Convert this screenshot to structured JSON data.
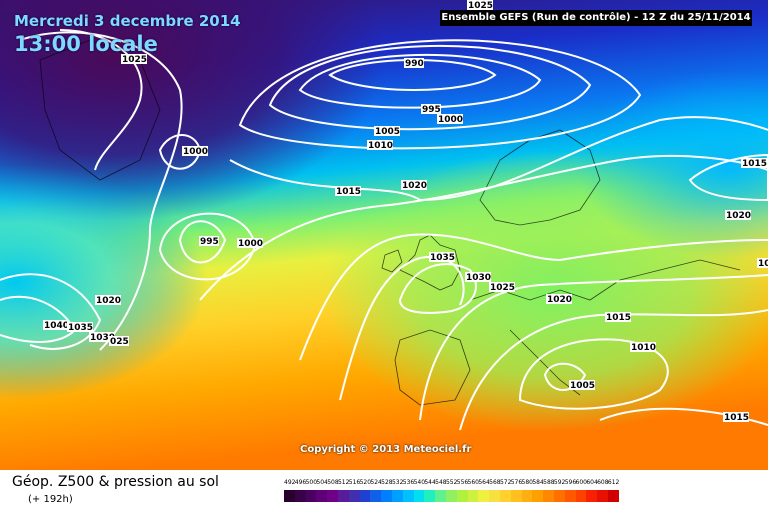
{
  "header": {
    "date": "Mercredi 3 decembre 2014",
    "time": "13:00 locale",
    "model": "Ensemble GEFS (Run de contrôle)  -  12 Z du 25/11/2014"
  },
  "copyright": "Copyright © 2013 Meteociel.fr",
  "footer": {
    "title": "Géop. Z500 & pression au sol",
    "subtitle": "(+ 192h)"
  },
  "scale": {
    "values": [
      "492",
      "496",
      "500",
      "504",
      "508",
      "512",
      "516",
      "520",
      "524",
      "528",
      "532",
      "536",
      "540",
      "544",
      "548",
      "552",
      "556",
      "560",
      "564",
      "568",
      "572",
      "576",
      "580",
      "584",
      "588",
      "592",
      "596",
      "600",
      "604",
      "608",
      "612"
    ],
    "colors": [
      "#2a0030",
      "#3a0048",
      "#4a0060",
      "#600078",
      "#700088",
      "#5a1a9a",
      "#4030b0",
      "#2040d0",
      "#1060e8",
      "#0080ff",
      "#00a0ff",
      "#00c0ff",
      "#00e0f0",
      "#20f0c0",
      "#60f090",
      "#90f060",
      "#b0f040",
      "#d0f040",
      "#f0f040",
      "#f8e040",
      "#ffd030",
      "#ffc020",
      "#ffb010",
      "#ffa000",
      "#ff8800",
      "#ff7000",
      "#ff5800",
      "#ff4000",
      "#f82000",
      "#e81000",
      "#d00000"
    ]
  },
  "isobars": [
    {
      "label": "1025",
      "kind": "top"
    },
    {
      "label": "990",
      "kind": "low"
    },
    {
      "label": "1025",
      "kind": "gl"
    },
    {
      "label": "995",
      "kind": "low"
    },
    {
      "label": "1000",
      "kind": "low"
    },
    {
      "label": "1005",
      "kind": "low"
    },
    {
      "label": "1010",
      "kind": "low"
    },
    {
      "label": "1000",
      "kind": "gl"
    },
    {
      "label": "1015",
      "kind": "mid"
    },
    {
      "label": "1020",
      "kind": "mid"
    },
    {
      "label": "995",
      "kind": "atl"
    },
    {
      "label": "1000",
      "kind": "atl"
    },
    {
      "label": "1035",
      "kind": "high"
    },
    {
      "label": "1030",
      "kind": "high"
    },
    {
      "label": "1025",
      "kind": "high"
    },
    {
      "label": "1020",
      "kind": "eur"
    },
    {
      "label": "1015",
      "kind": "eur"
    },
    {
      "label": "1010",
      "kind": "eur"
    },
    {
      "label": "1005",
      "kind": "med"
    },
    {
      "label": "1015",
      "kind": "east"
    },
    {
      "label": "1020",
      "kind": "east"
    },
    {
      "label": "1015",
      "kind": "se"
    },
    {
      "label": "102",
      "kind": "east"
    },
    {
      "label": "1020",
      "kind": "west"
    },
    {
      "label": "1040",
      "kind": "west"
    },
    {
      "label": "1035",
      "kind": "west"
    },
    {
      "label": "1030",
      "kind": "west"
    },
    {
      "label": "025",
      "kind": "west"
    }
  ]
}
